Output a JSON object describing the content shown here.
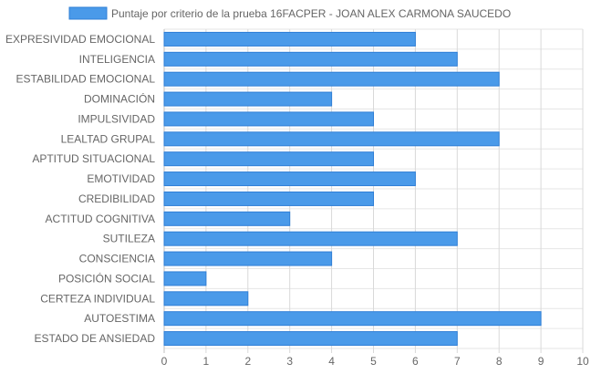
{
  "chart_data": {
    "type": "bar",
    "orientation": "horizontal",
    "legend": {
      "placement": "top-center",
      "items": [
        {
          "name": "Puntaje por criterio de la prueba 16FACPER - JOAN ALEX CARMONA SAUCEDO",
          "color": "#4A9AE9"
        }
      ]
    },
    "categories": [
      "EXPRESIVIDAD EMOCIONAL",
      "INTELIGENCIA",
      "ESTABILIDAD EMOCIONAL",
      "DOMINACIÓN",
      "IMPULSIVIDAD",
      "LEALTAD GRUPAL",
      "APTITUD SITUACIONAL",
      "EMOTIVIDAD",
      "CREDIBILIDAD",
      "ACTITUD COGNITIVA",
      "SUTILEZA",
      "CONSCIENCIA",
      "POSICIÓN SOCIAL",
      "CERTEZA INDIVIDUAL",
      "AUTOESTIMA",
      "ESTADO DE ANSIEDAD"
    ],
    "series": [
      {
        "name": "Puntaje por criterio de la prueba 16FACPER - JOAN ALEX CARMONA SAUCEDO",
        "color": "#4A9AE9",
        "border_color": "#2F7FD6",
        "values": [
          6,
          7,
          8,
          4,
          5,
          8,
          5,
          6,
          5,
          3,
          7,
          4,
          1,
          2,
          9,
          7
        ]
      }
    ],
    "xlim": [
      0,
      10
    ],
    "xticks": [
      "0",
      "1",
      "2",
      "3",
      "4",
      "5",
      "6",
      "7",
      "8",
      "9",
      "10"
    ],
    "grid": true
  }
}
